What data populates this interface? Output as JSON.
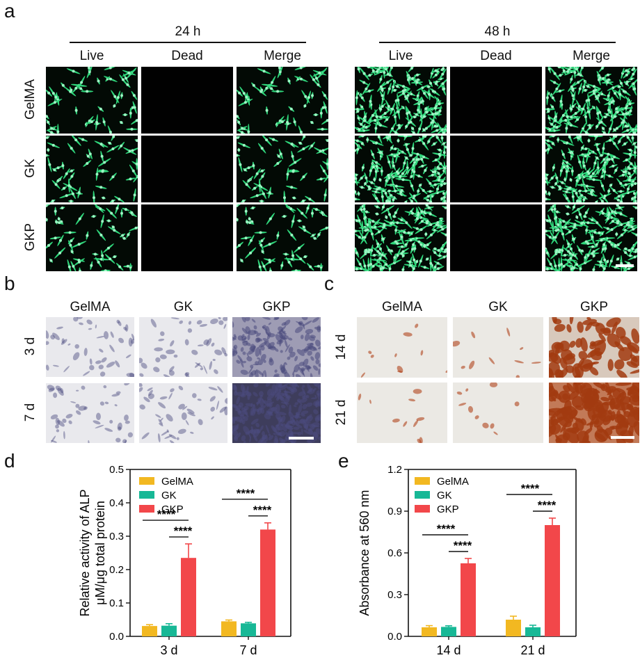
{
  "panel_a": {
    "letter": "a",
    "time_labels": [
      "24 h",
      "48 h"
    ],
    "column_labels": [
      "Live",
      "Dead",
      "Merge"
    ],
    "row_labels": [
      "GelMA",
      "GK",
      "GKP"
    ],
    "fluor_color": "#2fd57a"
  },
  "panel_b": {
    "letter": "b",
    "column_labels": [
      "GelMA",
      "GK",
      "GKP"
    ],
    "row_labels": [
      "3 d",
      "7 d"
    ],
    "stain_color": "#4a4a7e"
  },
  "panel_c": {
    "letter": "c",
    "column_labels": [
      "GelMA",
      "GK",
      "GKP"
    ],
    "row_labels": [
      "14 d",
      "21 d"
    ],
    "stain_color": "#b0441c"
  },
  "panel_d": {
    "letter": "d"
  },
  "panel_e": {
    "letter": "e"
  },
  "chart_data": [
    {
      "type": "bar",
      "panel": "d",
      "ylabel": [
        "Relative activity of ALP",
        "μM/μg total protein"
      ],
      "ylim": [
        0,
        0.5
      ],
      "yticks": [
        "0.0",
        "0.1",
        "0.2",
        "0.3",
        "0.4",
        "0.5"
      ],
      "categories": [
        "3 d",
        "7 d"
      ],
      "series": [
        {
          "name": "GelMA",
          "color": "#f2b821",
          "values": [
            0.031,
            0.045
          ],
          "errors": [
            0.004,
            0.004
          ]
        },
        {
          "name": "GK",
          "color": "#17b896",
          "values": [
            0.032,
            0.039
          ],
          "errors": [
            0.006,
            0.003
          ]
        },
        {
          "name": "GKP",
          "color": "#f2474a",
          "values": [
            0.235,
            0.32
          ],
          "errors": [
            0.042,
            0.02
          ]
        }
      ],
      "legend": "top-left",
      "significance": [
        "****",
        "****",
        "****",
        "****"
      ]
    },
    {
      "type": "bar",
      "panel": "e",
      "ylabel": [
        "Absorbance at 560 nm"
      ],
      "ylim": [
        0,
        1.2
      ],
      "yticks": [
        "0.0",
        "0.3",
        "0.6",
        "0.9",
        "1.2"
      ],
      "categories": [
        "14 d",
        "21 d"
      ],
      "series": [
        {
          "name": "GelMA",
          "color": "#f2b821",
          "values": [
            0.065,
            0.12
          ],
          "errors": [
            0.012,
            0.025
          ]
        },
        {
          "name": "GK",
          "color": "#17b896",
          "values": [
            0.068,
            0.065
          ],
          "errors": [
            0.008,
            0.015
          ]
        },
        {
          "name": "GKP",
          "color": "#f2474a",
          "values": [
            0.525,
            0.8
          ],
          "errors": [
            0.035,
            0.05
          ]
        }
      ],
      "legend": "top-left",
      "significance": [
        "****",
        "****",
        "****",
        "****"
      ]
    }
  ]
}
